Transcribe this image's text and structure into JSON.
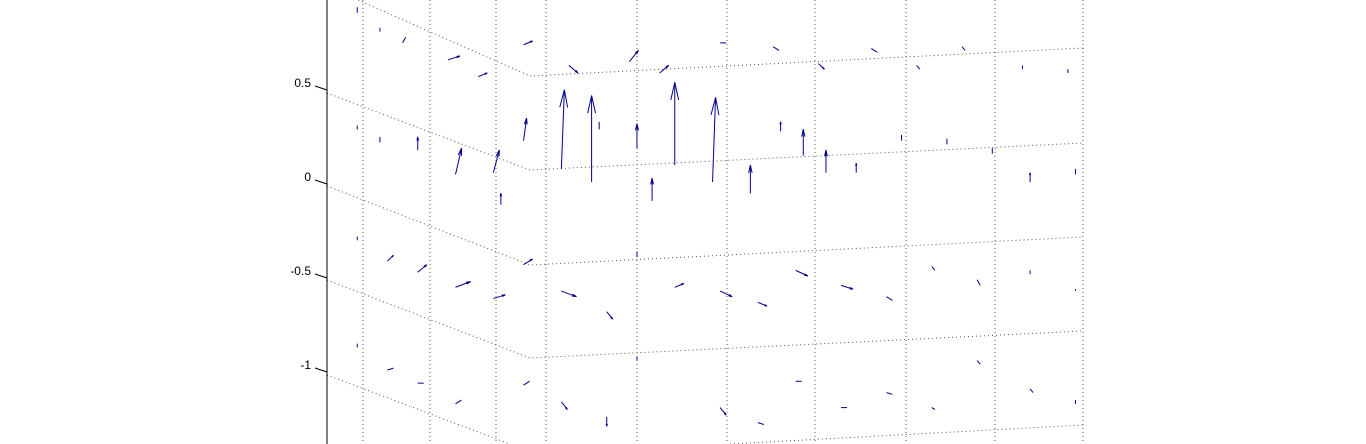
{
  "chart_data": {
    "type": "quiver",
    "title": "",
    "xlabel": "",
    "ylabel": "",
    "ylim": [
      -1.35,
      0.95
    ],
    "y_ticks": [
      {
        "value": 0.5,
        "label": "0.5"
      },
      {
        "value": 0,
        "label": "0"
      },
      {
        "value": -0.5,
        "label": "-0.5"
      },
      {
        "value": -1,
        "label": "-1"
      }
    ],
    "grid": true,
    "arrow_color": "#00008b",
    "grid_color": "#555555",
    "vectors": [
      {
        "x": 0.04,
        "y": 0.9,
        "u": 0.0,
        "v": 0.03
      },
      {
        "x": 0.07,
        "y": 0.8,
        "u": 0.0,
        "v": 0.02
      },
      {
        "x": 0.1,
        "y": 0.74,
        "u": 0.01,
        "v": 0.03
      },
      {
        "x": 0.16,
        "y": 0.65,
        "u": 0.04,
        "v": 0.02
      },
      {
        "x": 0.2,
        "y": 0.56,
        "u": 0.03,
        "v": 0.02
      },
      {
        "x": 0.26,
        "y": 0.73,
        "u": 0.03,
        "v": 0.02
      },
      {
        "x": 0.32,
        "y": 0.62,
        "u": 0.03,
        "v": -0.04
      },
      {
        "x": 0.4,
        "y": 0.64,
        "u": 0.03,
        "v": 0.06
      },
      {
        "x": 0.44,
        "y": 0.58,
        "u": 0.03,
        "v": 0.04
      },
      {
        "x": 0.52,
        "y": 0.74,
        "u": 0.02,
        "v": 0.0
      },
      {
        "x": 0.59,
        "y": 0.72,
        "u": 0.02,
        "v": -0.02
      },
      {
        "x": 0.65,
        "y": 0.63,
        "u": 0.02,
        "v": -0.03
      },
      {
        "x": 0.72,
        "y": 0.71,
        "u": 0.02,
        "v": -0.02
      },
      {
        "x": 0.78,
        "y": 0.62,
        "u": 0.01,
        "v": -0.02
      },
      {
        "x": 0.84,
        "y": 0.72,
        "u": 0.01,
        "v": -0.02
      },
      {
        "x": 0.92,
        "y": 0.62,
        "u": 0.0,
        "v": -0.02
      },
      {
        "x": 0.98,
        "y": 0.6,
        "u": 0.0,
        "v": -0.02
      },
      {
        "x": 0.04,
        "y": 0.28,
        "u": 0.0,
        "v": 0.02
      },
      {
        "x": 0.07,
        "y": 0.21,
        "u": 0.0,
        "v": 0.03
      },
      {
        "x": 0.12,
        "y": 0.17,
        "u": 0.0,
        "v": 0.07
      },
      {
        "x": 0.17,
        "y": 0.04,
        "u": 0.02,
        "v": 0.14
      },
      {
        "x": 0.22,
        "y": 0.05,
        "u": 0.02,
        "v": 0.12
      },
      {
        "x": 0.26,
        "y": 0.22,
        "u": 0.01,
        "v": 0.12
      },
      {
        "x": 0.23,
        "y": -0.12,
        "u": 0.0,
        "v": 0.06
      },
      {
        "x": 0.31,
        "y": 0.07,
        "u": 0.01,
        "v": 0.42
      },
      {
        "x": 0.35,
        "y": 0.0,
        "u": 0.0,
        "v": 0.46
      },
      {
        "x": 0.36,
        "y": 0.28,
        "u": 0.0,
        "v": 0.04
      },
      {
        "x": 0.41,
        "y": 0.18,
        "u": 0.0,
        "v": 0.13
      },
      {
        "x": 0.43,
        "y": -0.1,
        "u": 0.0,
        "v": 0.12
      },
      {
        "x": 0.46,
        "y": 0.09,
        "u": 0.0,
        "v": 0.44
      },
      {
        "x": 0.51,
        "y": 0.0,
        "u": 0.01,
        "v": 0.45
      },
      {
        "x": 0.56,
        "y": -0.06,
        "u": 0.0,
        "v": 0.15
      },
      {
        "x": 0.6,
        "y": 0.27,
        "u": 0.0,
        "v": 0.05
      },
      {
        "x": 0.63,
        "y": 0.14,
        "u": 0.0,
        "v": 0.14
      },
      {
        "x": 0.66,
        "y": 0.05,
        "u": 0.0,
        "v": 0.12
      },
      {
        "x": 0.7,
        "y": 0.05,
        "u": 0.0,
        "v": 0.05
      },
      {
        "x": 0.76,
        "y": 0.22,
        "u": 0.0,
        "v": 0.03
      },
      {
        "x": 0.82,
        "y": 0.2,
        "u": 0.0,
        "v": 0.03
      },
      {
        "x": 0.88,
        "y": 0.15,
        "u": 0.0,
        "v": 0.03
      },
      {
        "x": 0.93,
        "y": 0.0,
        "u": 0.0,
        "v": 0.05
      },
      {
        "x": 0.99,
        "y": 0.04,
        "u": 0.0,
        "v": 0.03
      },
      {
        "x": 0.04,
        "y": -0.31,
        "u": 0.0,
        "v": 0.02
      },
      {
        "x": 0.08,
        "y": -0.42,
        "u": 0.02,
        "v": 0.03
      },
      {
        "x": 0.12,
        "y": -0.48,
        "u": 0.03,
        "v": 0.04
      },
      {
        "x": 0.17,
        "y": -0.56,
        "u": 0.05,
        "v": 0.03
      },
      {
        "x": 0.22,
        "y": -0.62,
        "u": 0.04,
        "v": 0.02
      },
      {
        "x": 0.26,
        "y": -0.44,
        "u": 0.03,
        "v": 0.03
      },
      {
        "x": 0.31,
        "y": -0.58,
        "u": 0.05,
        "v": -0.03
      },
      {
        "x": 0.37,
        "y": -0.69,
        "u": 0.02,
        "v": -0.04
      },
      {
        "x": 0.41,
        "y": -0.4,
        "u": 0.0,
        "v": 0.03
      },
      {
        "x": 0.46,
        "y": -0.56,
        "u": 0.03,
        "v": 0.02
      },
      {
        "x": 0.52,
        "y": -0.58,
        "u": 0.04,
        "v": -0.03
      },
      {
        "x": 0.57,
        "y": -0.64,
        "u": 0.03,
        "v": -0.02
      },
      {
        "x": 0.62,
        "y": -0.47,
        "u": 0.04,
        "v": -0.03
      },
      {
        "x": 0.68,
        "y": -0.55,
        "u": 0.04,
        "v": -0.02
      },
      {
        "x": 0.74,
        "y": -0.61,
        "u": 0.02,
        "v": -0.02
      },
      {
        "x": 0.8,
        "y": -0.45,
        "u": 0.01,
        "v": -0.02
      },
      {
        "x": 0.86,
        "y": -0.52,
        "u": 0.01,
        "v": -0.03
      },
      {
        "x": 0.93,
        "y": -0.47,
        "u": 0.0,
        "v": -0.02
      },
      {
        "x": 0.99,
        "y": -0.57,
        "u": 0.0,
        "v": -0.01
      },
      {
        "x": 0.04,
        "y": -0.88,
        "u": 0.0,
        "v": 0.02
      },
      {
        "x": 0.08,
        "y": -1.0,
        "u": 0.02,
        "v": 0.01
      },
      {
        "x": 0.12,
        "y": -1.07,
        "u": 0.02,
        "v": 0.0
      },
      {
        "x": 0.17,
        "y": -1.18,
        "u": 0.02,
        "v": 0.02
      },
      {
        "x": 0.26,
        "y": -1.08,
        "u": 0.02,
        "v": 0.02
      },
      {
        "x": 0.31,
        "y": -1.17,
        "u": 0.02,
        "v": -0.04
      },
      {
        "x": 0.37,
        "y": -1.25,
        "u": 0.0,
        "v": -0.05
      },
      {
        "x": 0.41,
        "y": -0.95,
        "u": 0.0,
        "v": 0.02
      },
      {
        "x": 0.52,
        "y": -1.2,
        "u": 0.02,
        "v": -0.04
      },
      {
        "x": 0.57,
        "y": -1.28,
        "u": 0.02,
        "v": -0.01
      },
      {
        "x": 0.62,
        "y": -1.06,
        "u": 0.02,
        "v": 0.0
      },
      {
        "x": 0.68,
        "y": -1.2,
        "u": 0.02,
        "v": 0.0
      },
      {
        "x": 0.74,
        "y": -1.12,
        "u": 0.02,
        "v": -0.01
      },
      {
        "x": 0.8,
        "y": -1.2,
        "u": 0.01,
        "v": -0.01
      },
      {
        "x": 0.86,
        "y": -0.95,
        "u": 0.01,
        "v": -0.02
      },
      {
        "x": 0.93,
        "y": -1.1,
        "u": 0.01,
        "v": -0.02
      },
      {
        "x": 0.99,
        "y": -1.18,
        "u": 0.0,
        "v": 0.02
      }
    ]
  }
}
